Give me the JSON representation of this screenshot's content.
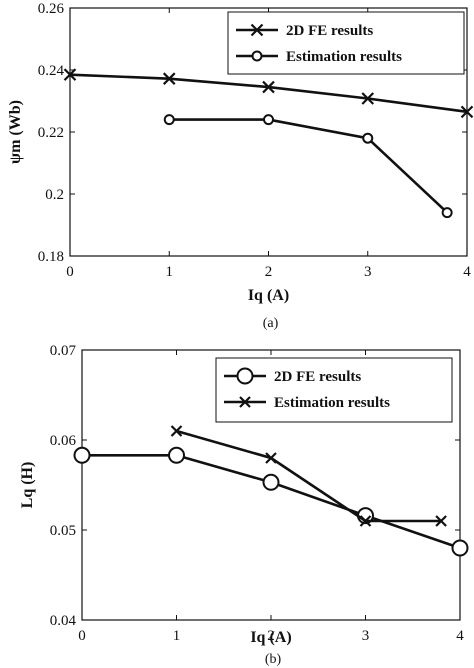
{
  "chart_data": [
    {
      "type": "line",
      "xlabel": "Iq (A)",
      "ylabel": "ψm (Wb)",
      "caption": "(a)",
      "xlim": [
        0,
        4
      ],
      "ylim": [
        0.18,
        0.26
      ],
      "xticks": [
        0,
        1,
        2,
        3,
        4
      ],
      "yticks": [
        0.18,
        0.2,
        0.22,
        0.24,
        0.26
      ],
      "xtick_labels": [
        "0",
        "1",
        "2",
        "3",
        "4"
      ],
      "ytick_labels": [
        "0.18",
        "0.2",
        "0.22",
        "0.24",
        "0.26"
      ],
      "legend_position": "top-right",
      "grid": false,
      "series": [
        {
          "name": "2D FE results",
          "marker": "x",
          "x": [
            0,
            1,
            2,
            3,
            4
          ],
          "y": [
            0.2385,
            0.2372,
            0.2345,
            0.2308,
            0.2265
          ]
        },
        {
          "name": "Estimation results",
          "marker": "circle",
          "x": [
            1,
            2,
            3,
            3.8
          ],
          "y": [
            0.224,
            0.224,
            0.218,
            0.194
          ]
        }
      ]
    },
    {
      "type": "line",
      "xlabel": "Iq (A)",
      "ylabel": "Lq (H)",
      "caption": "(b)",
      "xlim": [
        0,
        4
      ],
      "ylim": [
        0.04,
        0.07
      ],
      "xticks": [
        0,
        1,
        2,
        3,
        4
      ],
      "yticks": [
        0.04,
        0.05,
        0.06,
        0.07
      ],
      "xtick_labels": [
        "0",
        "1",
        "2",
        "3",
        "4"
      ],
      "ytick_labels": [
        "0.04",
        "0.05",
        "0.06",
        "0.07"
      ],
      "legend_position": "top-right",
      "grid": false,
      "series": [
        {
          "name": "2D FE results",
          "marker": "circle",
          "x": [
            0,
            1,
            2,
            3,
            4
          ],
          "y": [
            0.0583,
            0.0583,
            0.0553,
            0.0516,
            0.048
          ]
        },
        {
          "name": "Estimation results",
          "marker": "x",
          "x": [
            1,
            2,
            3,
            3.8
          ],
          "y": [
            0.061,
            0.058,
            0.051,
            0.051
          ]
        }
      ]
    }
  ]
}
